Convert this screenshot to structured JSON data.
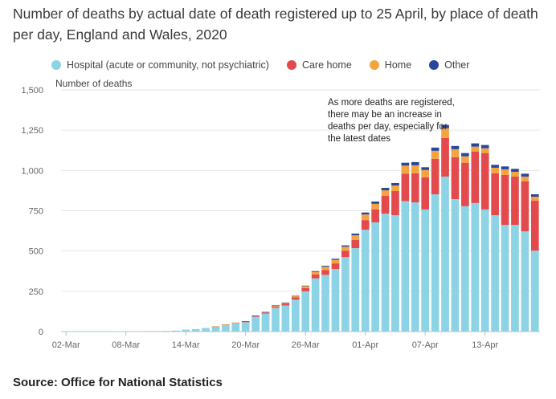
{
  "title": "Number of deaths by actual date of death registered up to 25 April, by place of death per day, England and Wales, 2020",
  "source": "Source: Office for National Statistics",
  "chart_data": {
    "type": "bar",
    "stacked": true,
    "ylabel": "Number of deaths",
    "ylim": [
      0,
      1500
    ],
    "yticks": [
      0,
      250,
      500,
      750,
      1000,
      1250,
      1500
    ],
    "ytick_labels": [
      "0",
      "250",
      "500",
      "750",
      "1,000",
      "1,250",
      "1,500"
    ],
    "xtick_labels": [
      {
        "index": 0,
        "label": "02-Mar"
      },
      {
        "index": 6,
        "label": "08-Mar"
      },
      {
        "index": 12,
        "label": "14-Mar"
      },
      {
        "index": 18,
        "label": "20-Mar"
      },
      {
        "index": 24,
        "label": "26-Mar"
      },
      {
        "index": 30,
        "label": "01-Apr"
      },
      {
        "index": 36,
        "label": "07-Apr"
      },
      {
        "index": 42,
        "label": "13-Apr"
      }
    ],
    "categories": [
      "02-Mar",
      "03-Mar",
      "04-Mar",
      "05-Mar",
      "06-Mar",
      "07-Mar",
      "08-Mar",
      "09-Mar",
      "10-Mar",
      "11-Mar",
      "12-Mar",
      "13-Mar",
      "14-Mar",
      "15-Mar",
      "16-Mar",
      "17-Mar",
      "18-Mar",
      "19-Mar",
      "20-Mar",
      "21-Mar",
      "22-Mar",
      "23-Mar",
      "24-Mar",
      "25-Mar",
      "26-Mar",
      "27-Mar",
      "28-Mar",
      "29-Mar",
      "30-Mar",
      "31-Mar",
      "01-Apr",
      "02-Apr",
      "03-Apr",
      "04-Apr",
      "05-Apr",
      "06-Apr",
      "07-Apr",
      "08-Apr",
      "09-Apr",
      "10-Apr",
      "11-Apr",
      "12-Apr",
      "13-Apr",
      "14-Apr",
      "15-Apr",
      "16-Apr",
      "17-Apr",
      "18-Apr"
    ],
    "series": [
      {
        "name": "Hospital (acute or community, not psychiatric)",
        "color": "#8dd3e6",
        "values": [
          1,
          1,
          1,
          1,
          1,
          2,
          1,
          2,
          3,
          3,
          4,
          6,
          12,
          15,
          22,
          30,
          42,
          52,
          58,
          92,
          112,
          148,
          162,
          198,
          250,
          330,
          352,
          388,
          462,
          518,
          632,
          678,
          732,
          722,
          810,
          802,
          758,
          852,
          962,
          822,
          778,
          798,
          758,
          722,
          662,
          662,
          622,
          502
        ]
      },
      {
        "name": "Care home",
        "color": "#e24a4d",
        "values": [
          0,
          0,
          0,
          0,
          0,
          0,
          0,
          0,
          0,
          0,
          0,
          0,
          0,
          0,
          0,
          2,
          2,
          3,
          4,
          5,
          6,
          8,
          10,
          14,
          20,
          25,
          30,
          35,
          40,
          50,
          60,
          80,
          110,
          150,
          170,
          180,
          200,
          220,
          240,
          260,
          270,
          320,
          350,
          260,
          310,
          300,
          310,
          310
        ]
      },
      {
        "name": "Home",
        "color": "#f4a340",
        "values": [
          0,
          0,
          0,
          0,
          0,
          0,
          0,
          0,
          0,
          0,
          0,
          0,
          0,
          0,
          0,
          1,
          1,
          1,
          2,
          2,
          3,
          5,
          6,
          8,
          12,
          15,
          20,
          22,
          25,
          30,
          35,
          35,
          35,
          35,
          50,
          50,
          45,
          50,
          60,
          50,
          40,
          30,
          30,
          35,
          35,
          30,
          30,
          25
        ]
      },
      {
        "name": "Other",
        "color": "#27479e",
        "values": [
          0,
          0,
          0,
          0,
          0,
          0,
          0,
          0,
          0,
          0,
          0,
          0,
          0,
          0,
          0,
          0,
          0,
          0,
          1,
          1,
          1,
          2,
          2,
          2,
          3,
          5,
          6,
          7,
          8,
          10,
          12,
          14,
          15,
          15,
          18,
          20,
          17,
          20,
          20,
          20,
          20,
          20,
          20,
          18,
          18,
          18,
          18,
          15
        ]
      }
    ],
    "annotation": [
      "As more deaths are registered,",
      "there may be an increase in",
      "deaths per day, especially for",
      "the latest dates"
    ],
    "grid": true
  }
}
